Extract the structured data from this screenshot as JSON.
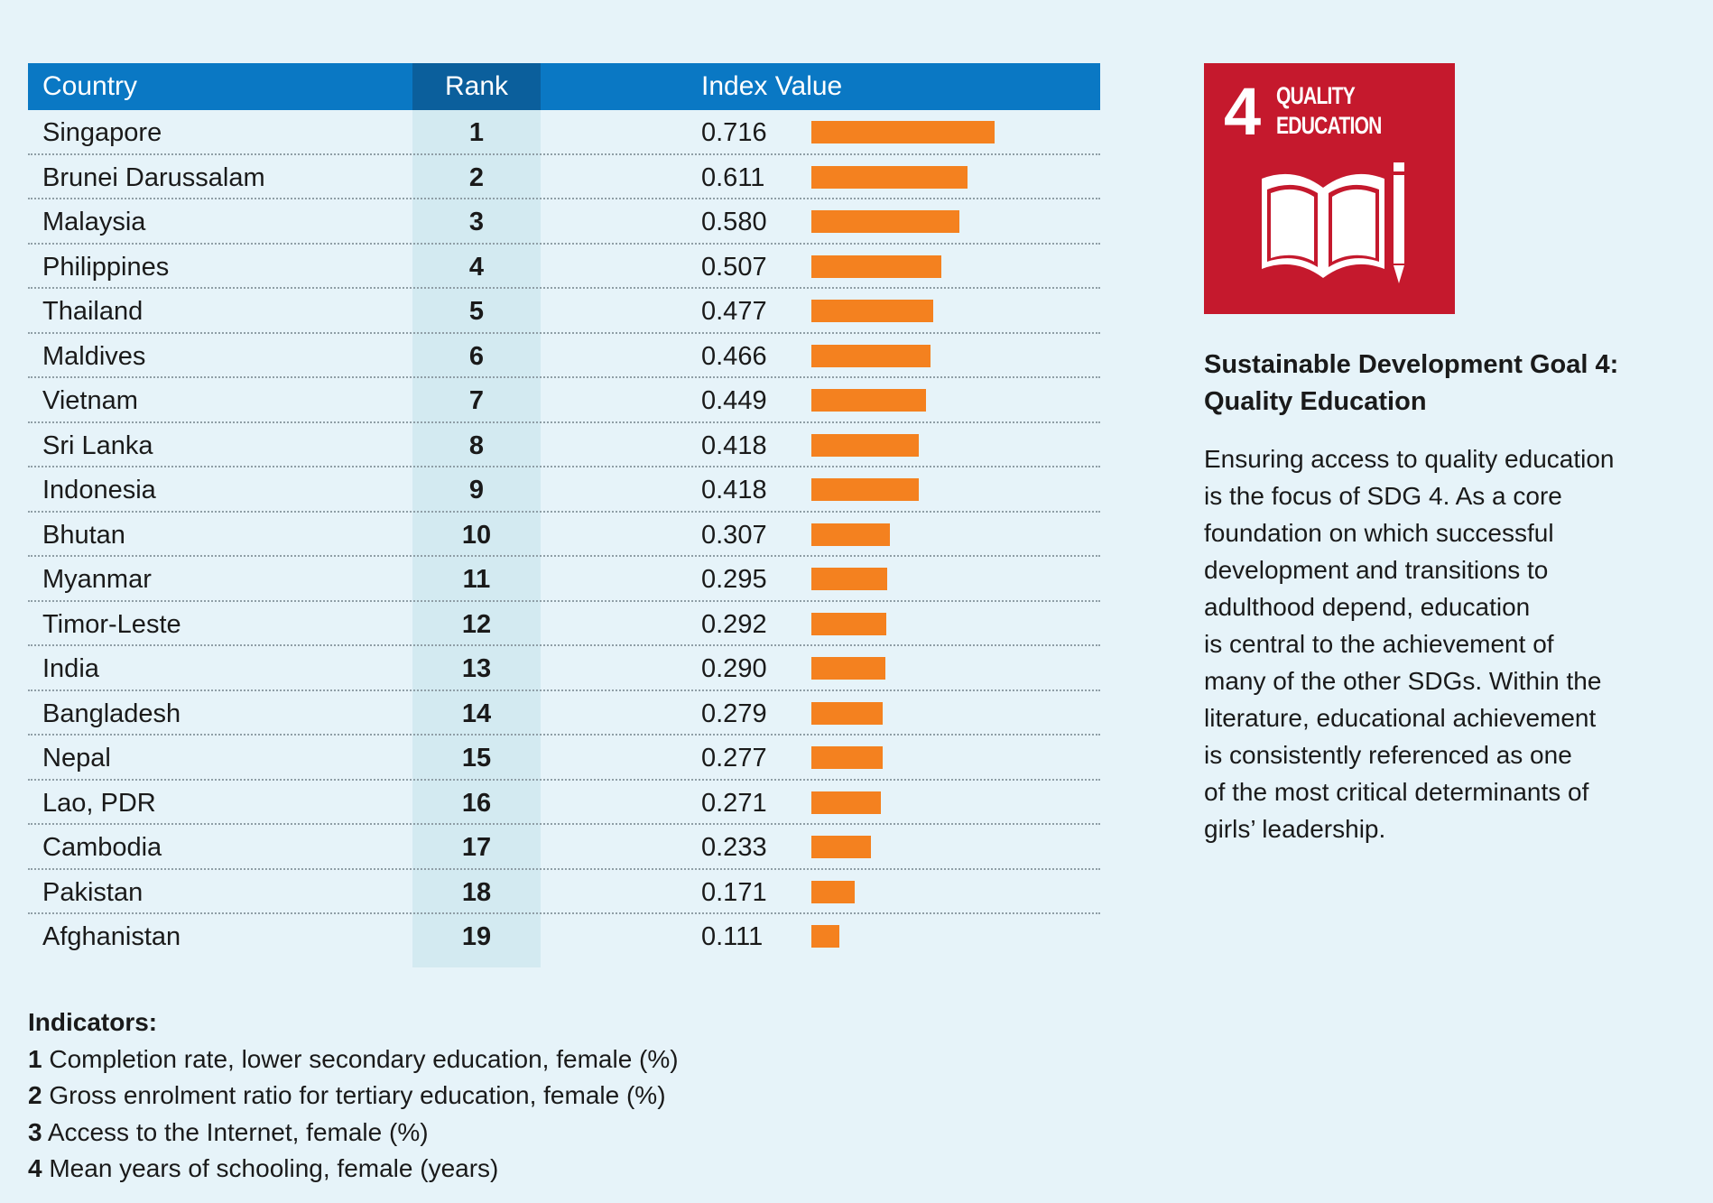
{
  "chart_data": {
    "type": "table",
    "columns": [
      "Country",
      "Rank",
      "Index Value"
    ],
    "xlim": [
      0,
      0.716
    ],
    "rows": [
      {
        "country": "Singapore",
        "rank": "1",
        "value": 0.716,
        "label": "0.716"
      },
      {
        "country": "Brunei Darussalam",
        "rank": "2",
        "value": 0.611,
        "label": "0.611"
      },
      {
        "country": "Malaysia",
        "rank": "3",
        "value": 0.58,
        "label": "0.580"
      },
      {
        "country": "Philippines",
        "rank": "4",
        "value": 0.507,
        "label": "0.507"
      },
      {
        "country": "Thailand",
        "rank": "5",
        "value": 0.477,
        "label": "0.477"
      },
      {
        "country": "Maldives",
        "rank": "6",
        "value": 0.466,
        "label": "0.466"
      },
      {
        "country": "Vietnam",
        "rank": "7",
        "value": 0.449,
        "label": "0.449"
      },
      {
        "country": "Sri Lanka",
        "rank": "8",
        "value": 0.418,
        "label": "0.418"
      },
      {
        "country": "Indonesia",
        "rank": "9",
        "value": 0.418,
        "label": "0.418"
      },
      {
        "country": "Bhutan",
        "rank": "10",
        "value": 0.307,
        "label": "0.307"
      },
      {
        "country": "Myanmar",
        "rank": "11",
        "value": 0.295,
        "label": "0.295"
      },
      {
        "country": "Timor-Leste",
        "rank": "12",
        "value": 0.292,
        "label": "0.292"
      },
      {
        "country": "India",
        "rank": "13",
        "value": 0.29,
        "label": "0.290"
      },
      {
        "country": "Bangladesh",
        "rank": "14",
        "value": 0.279,
        "label": "0.279"
      },
      {
        "country": "Nepal",
        "rank": "15",
        "value": 0.277,
        "label": "0.277"
      },
      {
        "country": "Lao, PDR",
        "rank": "16",
        "value": 0.271,
        "label": "0.271"
      },
      {
        "country": "Cambodia",
        "rank": "17",
        "value": 0.233,
        "label": "0.233"
      },
      {
        "country": "Pakistan",
        "rank": "18",
        "value": 0.171,
        "label": "0.171"
      },
      {
        "country": "Afghanistan",
        "rank": "19",
        "value": 0.111,
        "label": "0.111"
      }
    ],
    "bar_color": "#f4811f",
    "header_color": "#0a78c4",
    "rank_header_color": "#0b5f9c"
  },
  "indicators": {
    "title": "Indicators:",
    "items": [
      {
        "num": "1",
        "text": "Completion rate, lower secondary education, female (%)"
      },
      {
        "num": "2",
        "text": "Gross enrolment ratio for tertiary education, female (%)"
      },
      {
        "num": "3",
        "text": "Access to the Internet, female (%)"
      },
      {
        "num": "4",
        "text": "Mean years of schooling, female (years)"
      }
    ]
  },
  "sdg": {
    "logo_number": "4",
    "logo_line1": "QUALITY",
    "logo_line2": "EDUCATION",
    "logo_color": "#c5192d",
    "logo_icon": "book-pencil-icon",
    "title_line1": "Sustainable Development Goal 4:",
    "title_line2": "Quality Education",
    "body_lines": [
      "Ensuring access to quality education",
      "is the focus of SDG 4. As a core",
      "foundation on which successful",
      "development and transitions to",
      "adulthood depend, education",
      "is central to the achievement of",
      "many of the other SDGs. Within the",
      "literature, educational achievement",
      "is consistently referenced as one",
      "of the most critical determinants of",
      "girls’ leadership."
    ]
  }
}
